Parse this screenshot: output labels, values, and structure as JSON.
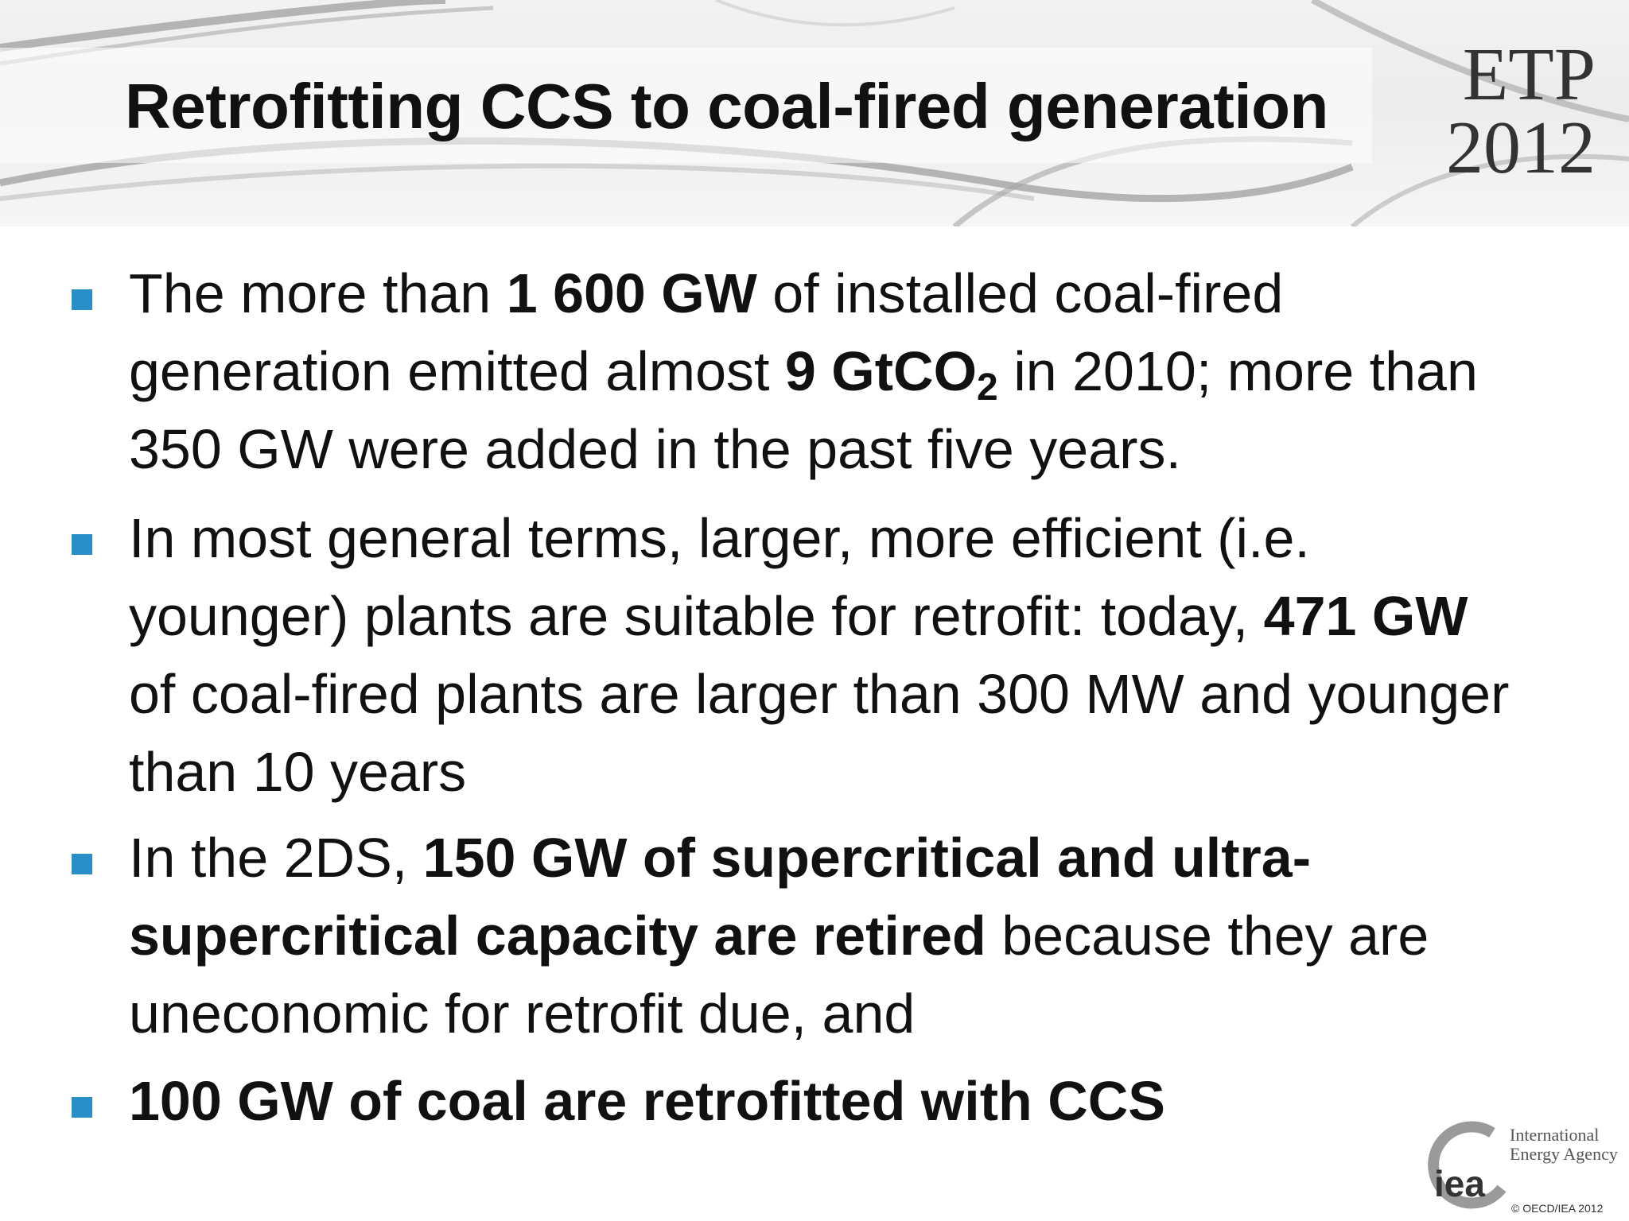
{
  "slide": {
    "title": "Retrofitting CCS to coal-fired generation",
    "badge": {
      "line1": "ETP",
      "line2": "2012"
    }
  },
  "bullets": [
    {
      "p1": "The more than ",
      "b1": "1 600 GW",
      "p2": " of installed coal-fired generation emitted almost ",
      "b2": "9 GtCO",
      "b2_sub": "2",
      "p3": " in 2010; more than 350 GW were added in the past five years."
    },
    {
      "p1": "In most general terms, larger, more efficient (i.e. younger) plants are suitable for retrofit: today, ",
      "b1": "471 GW",
      "p2": " of coal-fired plants are larger than 300 MW and younger than 10 years"
    },
    {
      "p1": "In the 2DS, ",
      "b1": "150 GW of supercritical and ultra-supercritical capacity are retired",
      "p2": " because they are uneconomic for retrofit due, and"
    },
    {
      "b1": "100 GW of coal are retrofitted with CCS"
    }
  ],
  "footer": {
    "logo_text": "iea",
    "agency_line1": "International",
    "agency_line2": "Energy Agency",
    "copyright": "© OECD/IEA 2012"
  },
  "colors": {
    "bullet_marker": "#2a8fc7",
    "title_text": "#111111"
  }
}
